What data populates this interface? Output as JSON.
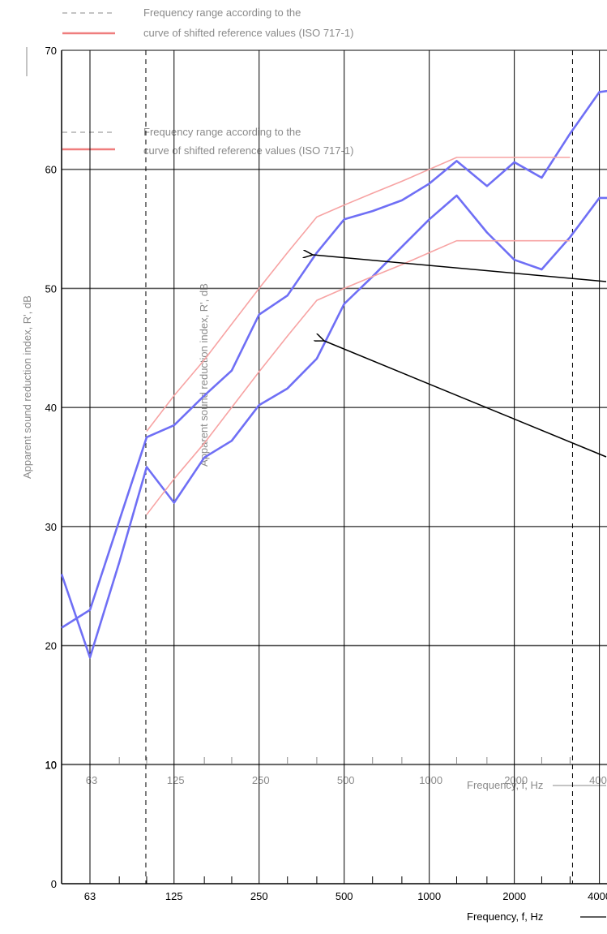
{
  "legend": {
    "range_label": "Frequency range according to the",
    "reference_label": "curve of shifted reference values (ISO 717-1)"
  },
  "colors": {
    "measured": "#6f6ff5",
    "reference": "#f7a3a3",
    "legend_reference": "#ef7d7d",
    "grid_major": "#000000",
    "ghost": "#8a8a8a"
  },
  "chart_data": {
    "type": "line",
    "ylabel": "Apparent sound reduction index, R', dB",
    "xlabel": "Frequency, f, Hz",
    "x_scale": "log (third-octave bands)",
    "ylim": [
      0,
      70
    ],
    "y_ticks": [
      0,
      10,
      20,
      30,
      40,
      50,
      60,
      70
    ],
    "x_tick_labels": [
      "63",
      "125",
      "250",
      "500",
      "1000",
      "2000",
      "4000"
    ],
    "x_bands_hz": [
      50,
      63,
      80,
      100,
      125,
      160,
      200,
      250,
      315,
      400,
      500,
      630,
      800,
      1000,
      1250,
      1600,
      2000,
      2500,
      3150,
      4000,
      5000
    ],
    "frequency_range_hz": [
      100,
      3150
    ],
    "grid": true,
    "series": [
      {
        "style": "measured (blue)",
        "x": [
          50,
          63,
          80,
          100,
          125,
          160,
          200,
          250,
          315,
          400,
          500,
          630,
          800,
          1000,
          1250,
          1600,
          2000,
          2500,
          3150,
          4000,
          5000
        ],
        "values": [
          21.5,
          23,
          30.5,
          37.5,
          38.5,
          41,
          43.1,
          47.8,
          49.4,
          53,
          55.8,
          56.5,
          57.4,
          58.8,
          60.7,
          58.6,
          60.6,
          59.3,
          63,
          66.5,
          66.8
        ]
      },
      {
        "style": "measured (blue)",
        "x": [
          50,
          63,
          80,
          100,
          125,
          160,
          200,
          250,
          315,
          400,
          500,
          630,
          800,
          1000,
          1250,
          1600,
          2000,
          2500,
          3150,
          4000,
          5000
        ],
        "values": [
          26,
          19,
          27,
          35,
          32,
          35.8,
          37.2,
          40.2,
          41.6,
          44.1,
          48.7,
          51,
          53.5,
          55.8,
          57.8,
          54.7,
          52.4,
          51.6,
          54.3,
          57.6,
          57.6
        ]
      },
      {
        "style": "shifted reference (red)",
        "x": [
          100,
          125,
          160,
          200,
          250,
          315,
          400,
          500,
          630,
          800,
          1000,
          1250,
          1600,
          2000,
          2500,
          3150
        ],
        "values": [
          38,
          41,
          44,
          47,
          50,
          53,
          56,
          57,
          58,
          59,
          60,
          61,
          61,
          61,
          61,
          61
        ]
      },
      {
        "style": "shifted reference (red)",
        "x": [
          100,
          125,
          160,
          200,
          250,
          315,
          400,
          500,
          630,
          800,
          1000,
          1250,
          1600,
          2000,
          2500,
          3150
        ],
        "values": [
          31,
          34,
          37,
          40,
          43,
          46,
          49,
          50,
          51,
          52,
          53,
          54,
          54,
          54,
          54,
          54
        ]
      }
    ],
    "overlay_copy": {
      "ylim": [
        10,
        70
      ],
      "range_label": "Frequency range according to the",
      "reference_label": "curve of shifted reference values (ISO 717-1)",
      "ylabel_fragment": "Apparent sound reduction index, R', dB"
    }
  }
}
